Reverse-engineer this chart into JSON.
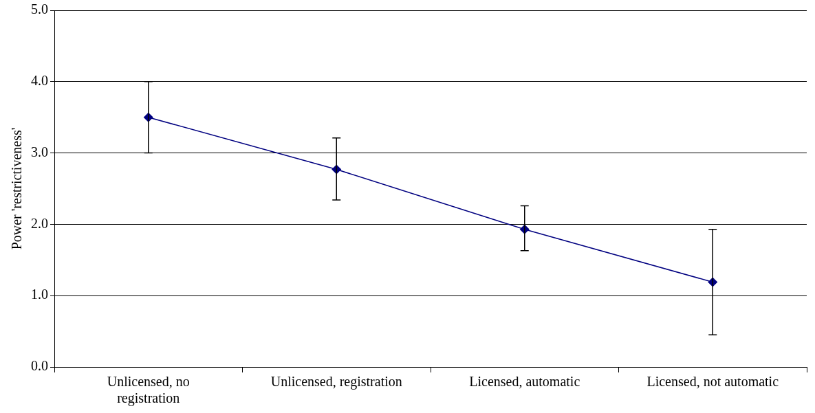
{
  "chart_data": {
    "type": "line",
    "ylabel": "Power 'restrictiveness'",
    "categories": [
      "Unlicensed, no registration",
      "Unlicensed, registration",
      "Licensed, automatic",
      "Licensed, not automatic"
    ],
    "series": [
      {
        "color": "#000080",
        "values": [
          3.5,
          2.77,
          1.93,
          1.19
        ],
        "errors": [
          [
            3.0,
            4.0
          ],
          [
            2.34,
            3.21
          ],
          [
            1.63,
            2.26
          ],
          [
            0.45,
            1.93
          ]
        ]
      }
    ],
    "ylim": [
      0,
      5
    ],
    "yticks": [
      {
        "value": 0,
        "label": "0.0"
      },
      {
        "value": 1,
        "label": "1.0"
      },
      {
        "value": 2,
        "label": "2.0"
      },
      {
        "value": 3,
        "label": "3.0"
      },
      {
        "value": 4,
        "label": "4.0"
      },
      {
        "value": 5,
        "label": "5.0"
      }
    ],
    "grid": "y",
    "legend": false,
    "marker": "diamond",
    "line_style": "solid"
  }
}
